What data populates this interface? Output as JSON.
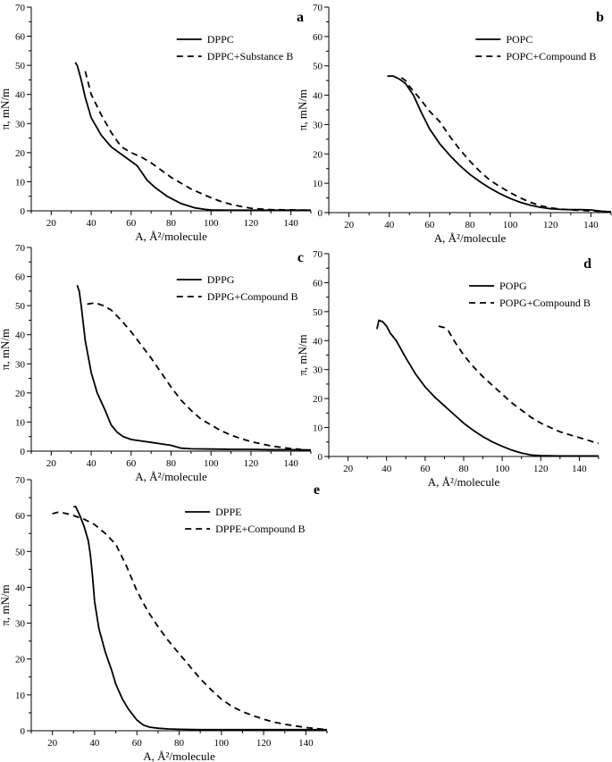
{
  "chart_data": [
    {
      "id": "a",
      "type": "line",
      "panel_label": "a",
      "xlabel": "A, Å²/molecule",
      "ylabel": "π, mN/m",
      "xlim": [
        10,
        150
      ],
      "ylim": [
        0,
        70
      ],
      "xticks": [
        20,
        40,
        60,
        80,
        100,
        120,
        140
      ],
      "yticks": [
        0,
        10,
        20,
        30,
        40,
        50,
        60,
        70
      ],
      "legend_position": "top-right",
      "series": [
        {
          "name": "DPPC",
          "style": "solid",
          "x": [
            32,
            33,
            35,
            37,
            40,
            45,
            50,
            55,
            60,
            63,
            65,
            68,
            72,
            78,
            85,
            92,
            97,
            100,
            110,
            120,
            130,
            140,
            150
          ],
          "y": [
            51,
            50,
            45,
            39,
            32,
            26,
            22,
            19.5,
            17,
            15.5,
            13.5,
            10.5,
            8,
            5,
            2.5,
            1,
            0.5,
            0.3,
            0.2,
            0.2,
            0.2,
            0.2,
            0.2
          ]
        },
        {
          "name": "DPPC+Substance B",
          "style": "dashed",
          "x": [
            37,
            40,
            45,
            50,
            55,
            60,
            65,
            70,
            75,
            80,
            85,
            90,
            95,
            100,
            105,
            110,
            115,
            120,
            125,
            130,
            140,
            150
          ],
          "y": [
            48,
            40,
            33,
            27,
            22,
            20,
            18.5,
            16.5,
            14,
            11.5,
            9.5,
            7.5,
            6,
            4.5,
            3.2,
            2.2,
            1.5,
            0.9,
            0.6,
            0.4,
            0.3,
            0.2
          ]
        }
      ]
    },
    {
      "id": "b",
      "type": "line",
      "panel_label": "b",
      "xlabel": "A, Å²/molecule",
      "ylabel": "π, mN/m",
      "xlim": [
        10,
        150
      ],
      "ylim": [
        0,
        70
      ],
      "xticks": [
        20,
        40,
        60,
        80,
        100,
        120,
        140
      ],
      "yticks": [
        0,
        10,
        20,
        30,
        40,
        50,
        60,
        70
      ],
      "legend_position": "top-right",
      "series": [
        {
          "name": "POPC",
          "style": "solid",
          "x": [
            39,
            42,
            45,
            48,
            52,
            56,
            60,
            65,
            70,
            75,
            80,
            85,
            90,
            95,
            100,
            105,
            110,
            115,
            120,
            125,
            130,
            135,
            140,
            145,
            150
          ],
          "y": [
            46.5,
            46.5,
            45.5,
            44,
            40,
            34,
            28.5,
            23.5,
            19.5,
            16,
            13,
            10.5,
            8.3,
            6.4,
            4.8,
            3.5,
            2.5,
            1.8,
            1.3,
            1.1,
            1,
            1,
            0.9,
            0.5,
            0.2
          ]
        },
        {
          "name": "POPC+Compound B",
          "style": "dashed",
          "x": [
            46,
            48,
            50,
            55,
            60,
            65,
            70,
            75,
            80,
            85,
            90,
            95,
            100,
            105,
            110,
            115,
            120,
            125,
            130,
            140,
            150
          ],
          "y": [
            46,
            45,
            43,
            39,
            34.5,
            31,
            26,
            21.5,
            17.5,
            14,
            11,
            8.8,
            6.8,
            5,
            3.5,
            2.3,
            1.6,
            1.2,
            0.9,
            0.6,
            0.3
          ]
        }
      ]
    },
    {
      "id": "c",
      "type": "line",
      "panel_label": "c",
      "xlabel": "A, Å²/molecule",
      "ylabel": "π, mN/m",
      "xlim": [
        10,
        150
      ],
      "ylim": [
        0,
        70
      ],
      "xticks": [
        20,
        40,
        60,
        80,
        100,
        120,
        140
      ],
      "yticks": [
        0,
        10,
        20,
        30,
        40,
        50,
        60,
        70
      ],
      "legend_position": "top-right",
      "series": [
        {
          "name": "DPPG",
          "style": "solid",
          "x": [
            33,
            34,
            35,
            37,
            40,
            43,
            47,
            50,
            53,
            56,
            60,
            65,
            70,
            75,
            80,
            85,
            90,
            100,
            110,
            120,
            130,
            140,
            150
          ],
          "y": [
            57,
            55,
            50,
            38,
            27,
            20,
            14,
            9,
            6.5,
            5,
            4,
            3.5,
            3,
            2.5,
            2,
            1,
            0.8,
            0.7,
            0.6,
            0.6,
            0.5,
            0.5,
            0.4
          ]
        },
        {
          "name": "DPPG+Compound B",
          "style": "dashed",
          "x": [
            38,
            42,
            46,
            50,
            55,
            60,
            65,
            70,
            75,
            80,
            85,
            90,
            95,
            100,
            105,
            110,
            115,
            120,
            125,
            130,
            135,
            140,
            145
          ],
          "y": [
            50.5,
            51,
            50,
            48.5,
            45,
            41,
            36.5,
            32,
            27,
            22,
            17.5,
            14,
            11,
            9,
            7,
            5.5,
            4.3,
            3.3,
            2.5,
            1.8,
            1.3,
            0.9,
            0.6
          ]
        }
      ]
    },
    {
      "id": "d",
      "type": "line",
      "panel_label": "d",
      "xlabel": "A, Å²/molecule",
      "ylabel": "π, mN/m",
      "xlim": [
        10,
        150
      ],
      "ylim": [
        0,
        70
      ],
      "xticks": [
        20,
        40,
        60,
        80,
        100,
        120,
        140
      ],
      "yticks": [
        0,
        10,
        20,
        30,
        40,
        50,
        60,
        70
      ],
      "legend_position": "top-right",
      "series": [
        {
          "name": "POPG",
          "style": "solid",
          "x": [
            35,
            36,
            38,
            40,
            42,
            45,
            50,
            55,
            60,
            65,
            70,
            75,
            80,
            85,
            90,
            95,
            100,
            105,
            110,
            115,
            120,
            130,
            140,
            150
          ],
          "y": [
            44,
            47,
            46.5,
            45,
            42.5,
            40,
            34,
            28.5,
            24,
            20.5,
            17.5,
            14.5,
            11.5,
            9,
            6.8,
            5,
            3.5,
            2.2,
            1.2,
            0.5,
            0.3,
            0.2,
            0.2,
            0.2
          ]
        },
        {
          "name": "POPG+Compound B",
          "style": "dashed",
          "x": [
            67,
            70,
            72,
            75,
            80,
            85,
            90,
            95,
            100,
            105,
            110,
            115,
            120,
            125,
            130,
            135,
            140,
            145,
            150
          ],
          "y": [
            45,
            44.5,
            43.5,
            40,
            35,
            31,
            27.5,
            24.5,
            21.5,
            18.5,
            16,
            13.5,
            11.5,
            10,
            8.5,
            7.5,
            6.5,
            5.5,
            4.5
          ]
        }
      ]
    },
    {
      "id": "e",
      "type": "line",
      "panel_label": "e",
      "xlabel": "A, Å²/molecule",
      "ylabel": "π, mN/m",
      "xlim": [
        10,
        150
      ],
      "ylim": [
        0,
        70
      ],
      "xticks": [
        20,
        40,
        60,
        80,
        100,
        120,
        140
      ],
      "yticks": [
        0,
        10,
        20,
        30,
        40,
        50,
        60,
        70
      ],
      "legend_position": "top-right",
      "series": [
        {
          "name": "DPPE",
          "style": "solid",
          "x": [
            30,
            31,
            33,
            35,
            37,
            38,
            39,
            40,
            42,
            45,
            48,
            50,
            53,
            56,
            60,
            63,
            66,
            70,
            75,
            80,
            90,
            100,
            120,
            140,
            150
          ],
          "y": [
            62.5,
            62.5,
            60,
            57,
            53,
            49,
            43,
            36,
            28.5,
            22,
            17,
            13,
            9,
            6,
            3,
            1.6,
            1,
            0.7,
            0.5,
            0.4,
            0.3,
            0.3,
            0.3,
            0.3,
            0.3
          ]
        },
        {
          "name": "DPPE+Compound B",
          "style": "dashed",
          "x": [
            20,
            23,
            27,
            30,
            35,
            40,
            45,
            50,
            55,
            60,
            65,
            70,
            75,
            80,
            85,
            90,
            95,
            100,
            105,
            110,
            115,
            120,
            125,
            130,
            140,
            150
          ],
          "y": [
            60.5,
            61,
            60.5,
            60,
            59,
            57.5,
            55,
            52,
            46,
            39,
            33.5,
            29,
            25,
            21.5,
            18,
            14.5,
            11.5,
            8.8,
            6.8,
            5.3,
            4.2,
            3.2,
            2.4,
            1.8,
            0.9,
            0.3
          ]
        }
      ]
    }
  ]
}
